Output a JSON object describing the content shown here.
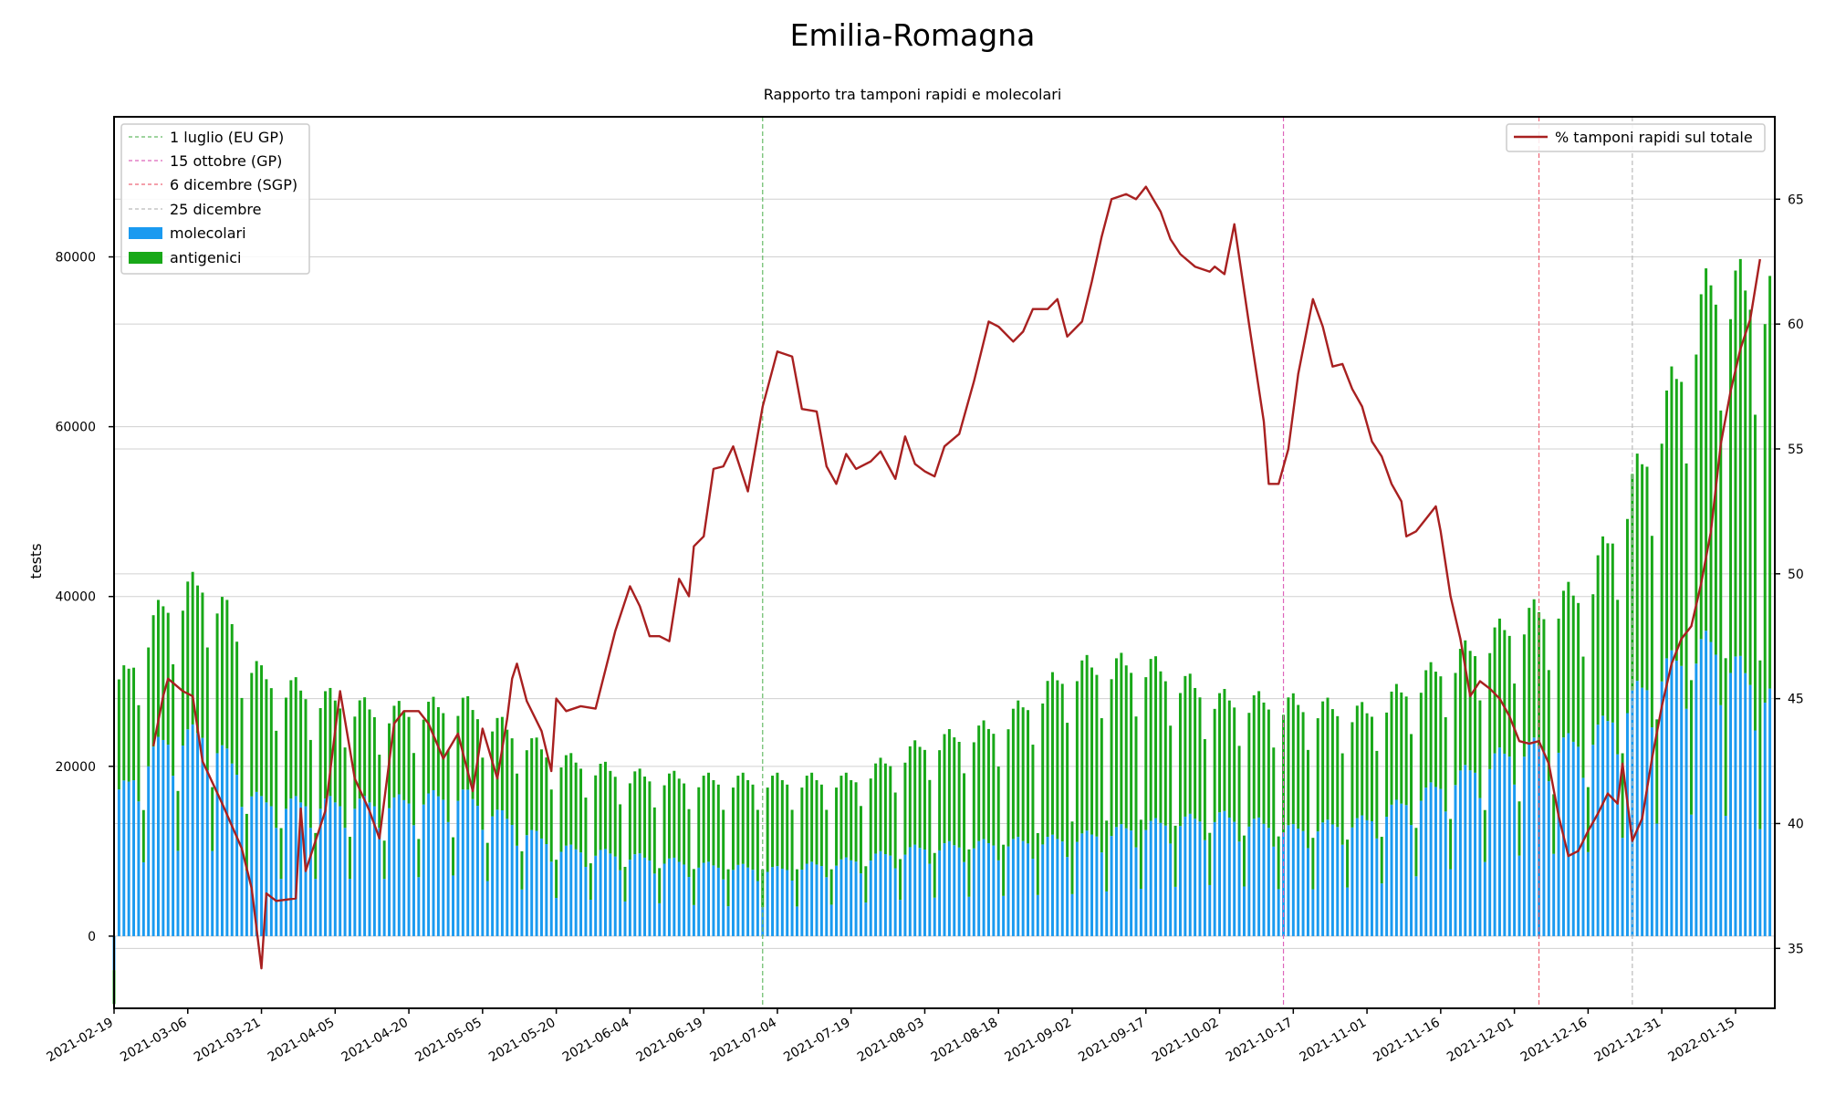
{
  "title": "Emilia-Romagna",
  "chart_data": {
    "type": "bar",
    "title": "Emilia-Romagna",
    "subtitle": "Rapporto tra tamponi rapidi e molecolari",
    "ylabel": "tests",
    "ylim": [
      -8500,
      96500
    ],
    "y2lim": [
      32.6,
      68.3
    ],
    "yticks": [
      0,
      20000,
      40000,
      60000,
      80000
    ],
    "y2ticks": [
      35,
      40,
      45,
      50,
      55,
      60,
      65
    ],
    "xlim": [
      "2021-02-19",
      "2022-01-23"
    ],
    "xticks": [
      "2021-02-19",
      "2021-03-06",
      "2021-03-21",
      "2021-04-05",
      "2021-04-20",
      "2021-05-05",
      "2021-05-20",
      "2021-06-04",
      "2021-06-19",
      "2021-07-04",
      "2021-07-19",
      "2021-08-03",
      "2021-08-18",
      "2021-09-02",
      "2021-09-17",
      "2021-10-02",
      "2021-10-17",
      "2021-11-01",
      "2021-11-16",
      "2021-12-01",
      "2021-12-16",
      "2021-12-31",
      "2022-01-15"
    ],
    "grid": true,
    "colors": {
      "molecolari": "#1a9af0",
      "antigenici": "#18a818",
      "line": "#a82020",
      "eu_gp": "#66bb66",
      "gp": "#dd66bb",
      "sgp": "#ee6677",
      "dec25": "#bbbbbb"
    },
    "vlines": [
      {
        "date": "2021-07-01",
        "label": "1 luglio (EU GP)"
      },
      {
        "date": "2021-10-15",
        "label": "15 ottobre (GP)"
      },
      {
        "date": "2021-12-06",
        "label": "6 dicembre (SGP)"
      },
      {
        "date": "2021-12-25",
        "label": "25 dicembre"
      }
    ],
    "legend_left": {
      "placement": "upper-left",
      "vline_labels": [
        "1 luglio (EU GP)",
        "15 ottobre (GP)",
        "6 dicembre (SGP)",
        "25 dicembre"
      ],
      "bar_labels": [
        "molecolari",
        "antigenici"
      ]
    },
    "legend_right": {
      "placement": "upper-right",
      "label": "% tamponi rapidi sul totale"
    },
    "series": [
      {
        "name": "molecolari",
        "axis": "left",
        "keyframes": [
          [
            "2021-02-19",
            -4000
          ],
          [
            "2021-02-20",
            16000
          ],
          [
            "2021-03-01",
            22000
          ],
          [
            "2021-03-10",
            23000
          ],
          [
            "2021-03-21",
            15000
          ],
          [
            "2021-04-01",
            15000
          ],
          [
            "2021-04-15",
            15000
          ],
          [
            "2021-05-01",
            16000
          ],
          [
            "2021-05-20",
            10000
          ],
          [
            "2021-06-04",
            9000
          ],
          [
            "2021-06-19",
            8000
          ],
          [
            "2021-07-04",
            7500
          ],
          [
            "2021-07-19",
            8500
          ],
          [
            "2021-08-03",
            10000
          ],
          [
            "2021-08-18",
            10500
          ],
          [
            "2021-09-02",
            11000
          ],
          [
            "2021-09-17",
            12500
          ],
          [
            "2021-10-02",
            13500
          ],
          [
            "2021-10-17",
            12000
          ],
          [
            "2021-11-01",
            13000
          ],
          [
            "2021-11-16",
            17000
          ],
          [
            "2021-12-01",
            21000
          ],
          [
            "2021-12-16",
            22000
          ],
          [
            "2021-12-31",
            30000
          ],
          [
            "2022-01-10",
            33000
          ],
          [
            "2022-01-22",
            27000
          ]
        ]
      },
      {
        "name": "antigenici",
        "axis": "left",
        "keyframes": [
          [
            "2021-02-19",
            -4000
          ],
          [
            "2021-02-20",
            12000
          ],
          [
            "2021-03-01",
            15000
          ],
          [
            "2021-03-10",
            17000
          ],
          [
            "2021-03-21",
            14000
          ],
          [
            "2021-04-01",
            12000
          ],
          [
            "2021-04-15",
            10000
          ],
          [
            "2021-05-01",
            10000
          ],
          [
            "2021-05-20",
            10000
          ],
          [
            "2021-06-04",
            9000
          ],
          [
            "2021-06-19",
            9500
          ],
          [
            "2021-07-04",
            10000
          ],
          [
            "2021-07-19",
            9000
          ],
          [
            "2021-08-03",
            11500
          ],
          [
            "2021-08-18",
            13000
          ],
          [
            "2021-09-02",
            19000
          ],
          [
            "2021-09-17",
            18000
          ],
          [
            "2021-10-02",
            13000
          ],
          [
            "2021-10-17",
            14000
          ],
          [
            "2021-11-01",
            12000
          ],
          [
            "2021-11-16",
            13000
          ],
          [
            "2021-12-01",
            14000
          ],
          [
            "2021-12-16",
            17000
          ],
          [
            "2021-12-31",
            28000
          ],
          [
            "2022-01-10",
            40000
          ],
          [
            "2022-01-22",
            45000
          ]
        ]
      },
      {
        "name": "% tamponi rapidi sul totale",
        "axis": "right",
        "type": "line",
        "keyframes": [
          [
            "2021-02-27",
            43.1
          ],
          [
            "2021-03-01",
            45.1
          ],
          [
            "2021-03-02",
            45.8
          ],
          [
            "2021-03-05",
            45.3
          ],
          [
            "2021-03-07",
            45.1
          ],
          [
            "2021-03-09",
            42.5
          ],
          [
            "2021-03-13",
            40.8
          ],
          [
            "2021-03-17",
            39.0
          ],
          [
            "2021-03-19",
            37.4
          ],
          [
            "2021-03-21",
            34.2
          ],
          [
            "2021-03-22",
            37.2
          ],
          [
            "2021-03-24",
            36.9
          ],
          [
            "2021-03-28",
            37.0
          ],
          [
            "2021-03-29",
            40.6
          ],
          [
            "2021-03-30",
            38.1
          ],
          [
            "2021-04-03",
            40.5
          ],
          [
            "2021-04-06",
            45.3
          ],
          [
            "2021-04-09",
            41.8
          ],
          [
            "2021-04-12",
            40.5
          ],
          [
            "2021-04-14",
            39.4
          ],
          [
            "2021-04-17",
            44.0
          ],
          [
            "2021-04-19",
            44.5
          ],
          [
            "2021-04-22",
            44.5
          ],
          [
            "2021-04-24",
            44.0
          ],
          [
            "2021-04-27",
            42.6
          ],
          [
            "2021-04-30",
            43.6
          ],
          [
            "2021-05-03",
            41.3
          ],
          [
            "2021-05-05",
            43.8
          ],
          [
            "2021-05-08",
            41.8
          ],
          [
            "2021-05-10",
            44.2
          ],
          [
            "2021-05-11",
            45.8
          ],
          [
            "2021-05-12",
            46.4
          ],
          [
            "2021-05-14",
            44.9
          ],
          [
            "2021-05-17",
            43.7
          ],
          [
            "2021-05-19",
            42.1
          ],
          [
            "2021-05-20",
            45.0
          ],
          [
            "2021-05-22",
            44.5
          ],
          [
            "2021-05-25",
            44.7
          ],
          [
            "2021-05-28",
            44.6
          ],
          [
            "2021-06-01",
            47.7
          ],
          [
            "2021-06-04",
            49.5
          ],
          [
            "2021-06-06",
            48.7
          ],
          [
            "2021-06-08",
            47.5
          ],
          [
            "2021-06-10",
            47.5
          ],
          [
            "2021-06-12",
            47.3
          ],
          [
            "2021-06-14",
            49.8
          ],
          [
            "2021-06-16",
            49.1
          ],
          [
            "2021-06-17",
            51.1
          ],
          [
            "2021-06-19",
            51.5
          ],
          [
            "2021-06-21",
            54.2
          ],
          [
            "2021-06-23",
            54.3
          ],
          [
            "2021-06-25",
            55.1
          ],
          [
            "2021-06-28",
            53.3
          ],
          [
            "2021-07-01",
            56.7
          ],
          [
            "2021-07-04",
            58.9
          ],
          [
            "2021-07-07",
            58.7
          ],
          [
            "2021-07-09",
            56.6
          ],
          [
            "2021-07-12",
            56.5
          ],
          [
            "2021-07-14",
            54.3
          ],
          [
            "2021-07-16",
            53.6
          ],
          [
            "2021-07-18",
            54.8
          ],
          [
            "2021-07-20",
            54.2
          ],
          [
            "2021-07-23",
            54.5
          ],
          [
            "2021-07-25",
            54.9
          ],
          [
            "2021-07-28",
            53.8
          ],
          [
            "2021-07-30",
            55.5
          ],
          [
            "2021-08-01",
            54.4
          ],
          [
            "2021-08-03",
            54.1
          ],
          [
            "2021-08-05",
            53.9
          ],
          [
            "2021-08-07",
            55.1
          ],
          [
            "2021-08-10",
            55.6
          ],
          [
            "2021-08-13",
            57.7
          ],
          [
            "2021-08-16",
            60.1
          ],
          [
            "2021-08-18",
            59.9
          ],
          [
            "2021-08-21",
            59.3
          ],
          [
            "2021-08-23",
            59.7
          ],
          [
            "2021-08-25",
            60.6
          ],
          [
            "2021-08-28",
            60.6
          ],
          [
            "2021-08-30",
            61.0
          ],
          [
            "2021-09-01",
            59.5
          ],
          [
            "2021-09-04",
            60.1
          ],
          [
            "2021-09-06",
            61.7
          ],
          [
            "2021-09-08",
            63.5
          ],
          [
            "2021-09-10",
            65.0
          ],
          [
            "2021-09-13",
            65.2
          ],
          [
            "2021-09-15",
            65.0
          ],
          [
            "2021-09-17",
            65.5
          ],
          [
            "2021-09-20",
            64.5
          ],
          [
            "2021-09-22",
            63.4
          ],
          [
            "2021-09-24",
            62.8
          ],
          [
            "2021-09-27",
            62.3
          ],
          [
            "2021-09-30",
            62.1
          ],
          [
            "2021-10-01",
            62.3
          ],
          [
            "2021-10-03",
            62.0
          ],
          [
            "2021-10-05",
            64.0
          ],
          [
            "2021-10-08",
            60.0
          ],
          [
            "2021-10-11",
            56.1
          ],
          [
            "2021-10-12",
            53.6
          ],
          [
            "2021-10-14",
            53.6
          ],
          [
            "2021-10-16",
            55.0
          ],
          [
            "2021-10-18",
            58.0
          ],
          [
            "2021-10-21",
            61.0
          ],
          [
            "2021-10-23",
            59.9
          ],
          [
            "2021-10-25",
            58.3
          ],
          [
            "2021-10-27",
            58.4
          ],
          [
            "2021-10-29",
            57.4
          ],
          [
            "2021-10-31",
            56.7
          ],
          [
            "2021-11-02",
            55.3
          ],
          [
            "2021-11-04",
            54.7
          ],
          [
            "2021-11-06",
            53.6
          ],
          [
            "2021-11-08",
            52.9
          ],
          [
            "2021-11-09",
            51.5
          ],
          [
            "2021-11-11",
            51.7
          ],
          [
            "2021-11-13",
            52.2
          ],
          [
            "2021-11-15",
            52.7
          ],
          [
            "2021-11-16",
            51.7
          ],
          [
            "2021-11-18",
            49.1
          ],
          [
            "2021-11-20",
            47.4
          ],
          [
            "2021-11-22",
            45.1
          ],
          [
            "2021-11-24",
            45.7
          ],
          [
            "2021-11-26",
            45.4
          ],
          [
            "2021-11-28",
            45.0
          ],
          [
            "2021-11-30",
            44.3
          ],
          [
            "2021-12-02",
            43.3
          ],
          [
            "2021-12-04",
            43.2
          ],
          [
            "2021-12-06",
            43.3
          ],
          [
            "2021-12-08",
            42.4
          ],
          [
            "2021-12-10",
            40.3
          ],
          [
            "2021-12-12",
            38.7
          ],
          [
            "2021-12-14",
            38.9
          ],
          [
            "2021-12-16",
            39.7
          ],
          [
            "2021-12-18",
            40.4
          ],
          [
            "2021-12-20",
            41.2
          ],
          [
            "2021-12-22",
            40.8
          ],
          [
            "2021-12-23",
            42.4
          ],
          [
            "2021-12-25",
            39.3
          ],
          [
            "2021-12-27",
            40.2
          ],
          [
            "2021-12-29",
            42.6
          ],
          [
            "2021-12-31",
            44.7
          ],
          [
            "2022-01-02",
            46.4
          ],
          [
            "2022-01-04",
            47.4
          ],
          [
            "2022-01-06",
            47.9
          ],
          [
            "2022-01-08",
            49.6
          ],
          [
            "2022-01-10",
            51.7
          ],
          [
            "2022-01-12",
            55.2
          ],
          [
            "2022-01-14",
            57.3
          ],
          [
            "2022-01-16",
            59.0
          ],
          [
            "2022-01-18",
            60.2
          ],
          [
            "2022-01-20",
            62.6
          ]
        ]
      }
    ]
  }
}
